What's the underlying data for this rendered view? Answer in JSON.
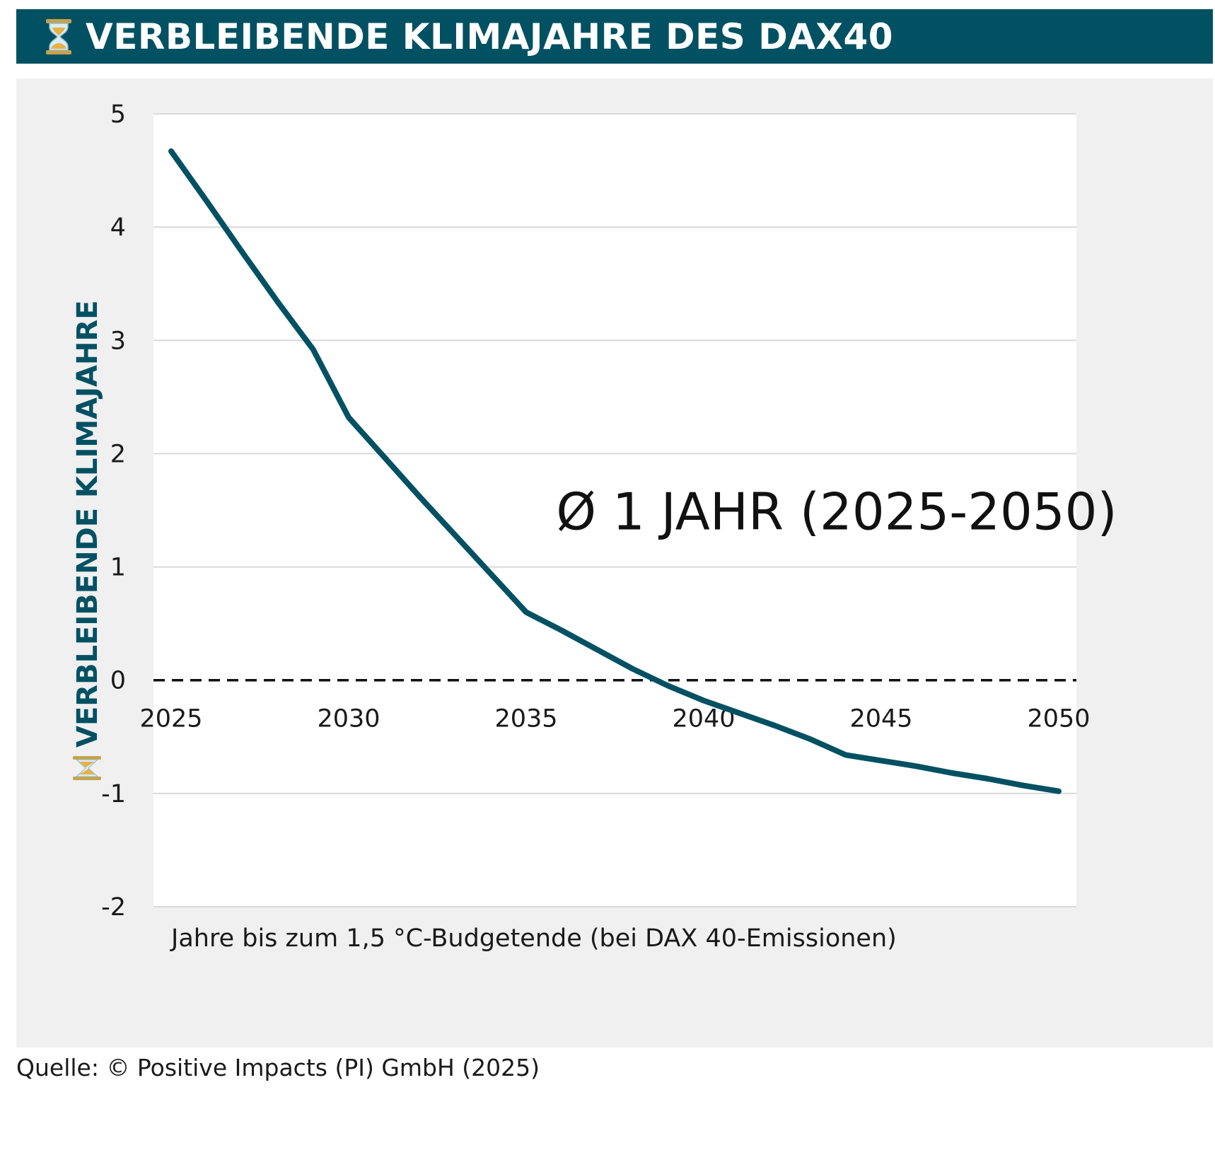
{
  "header": {
    "icon": "hourglass-icon",
    "title": "VERBLEIBENDE KLIMAJAHRE DES DAX40"
  },
  "source": "Quelle: © Positive Impacts (PI) GmbH (2025)",
  "colors": {
    "header_bg": "#015163",
    "line": "#015163",
    "panel_bg": "#f0f0f0",
    "grid": "#d9d9d9",
    "zero_line": "#111111"
  },
  "chart_data": {
    "type": "line",
    "title": "VERBLEIBENDE KLIMAJAHRE DES DAX40",
    "xlabel": "Jahre bis zum 1,5 °C-Budgetende (bei DAX 40-Emissionen)",
    "ylabel": "VERBLEIBENDE KLIMAJAHRE",
    "ylabel_icon": "hourglass-icon",
    "xlim": [
      2025,
      2050
    ],
    "ylim": [
      -2,
      5
    ],
    "xticks": [
      "2025",
      "2030",
      "2035",
      "2040",
      "2045",
      "2050"
    ],
    "yticks": [
      "-2",
      "-1",
      "0",
      "1",
      "2",
      "3",
      "4",
      "5"
    ],
    "grid": "horizontal",
    "reference_line": {
      "y": 0,
      "style": "dashed"
    },
    "annotation": "Ø 1 JAHR (2025-2050)",
    "x": [
      2025,
      2026,
      2027,
      2028,
      2029,
      2030,
      2031,
      2032,
      2033,
      2034,
      2035,
      2036,
      2037,
      2038,
      2039,
      2040,
      2041,
      2042,
      2043,
      2044,
      2045,
      2046,
      2047,
      2048,
      2049,
      2050
    ],
    "series": [
      {
        "values": [
          4.67,
          4.23,
          3.78,
          3.34,
          2.92,
          2.32,
          1.97,
          1.62,
          1.28,
          0.94,
          0.6,
          0.44,
          0.27,
          0.1,
          -0.05,
          -0.18,
          -0.29,
          -0.4,
          -0.52,
          -0.66,
          -0.71,
          -0.76,
          -0.82,
          -0.87,
          -0.93,
          -0.98
        ]
      }
    ]
  }
}
